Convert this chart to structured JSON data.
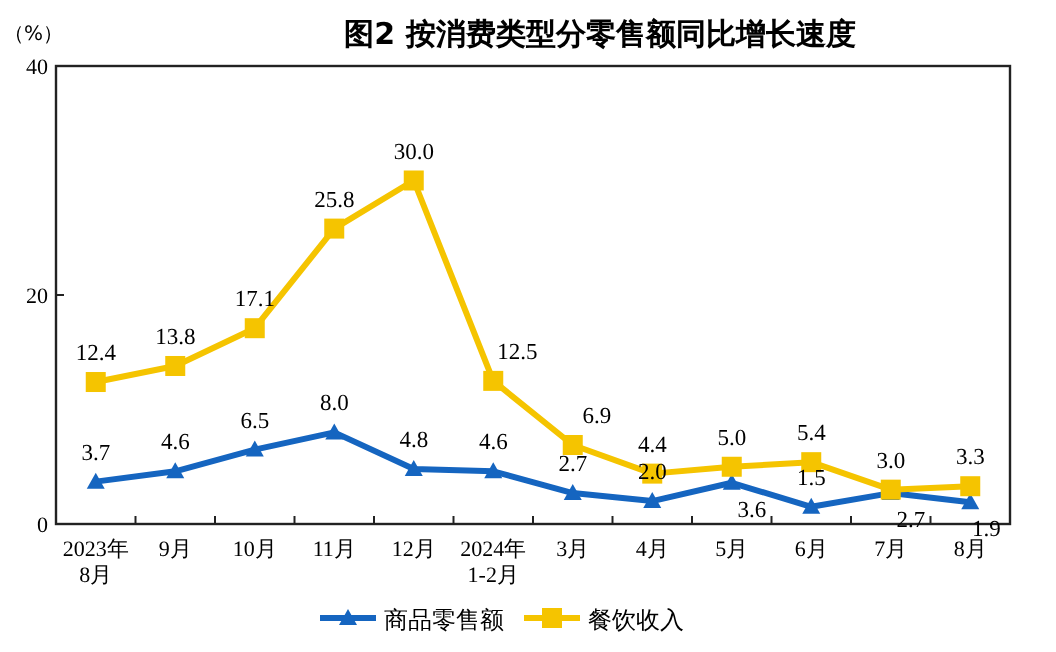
{
  "chart_data": {
    "type": "line",
    "title": "图2  按消费类型分零售额同比增长速度",
    "ylabel": "（%）",
    "categories": [
      "2023年\n8月",
      "9月",
      "10月",
      "11月",
      "12月",
      "2024年\n1-2月",
      "3月",
      "4月",
      "5月",
      "6月",
      "7月",
      "8月"
    ],
    "series": [
      {
        "name": "商品零售额",
        "color": "#1565c0",
        "marker": "triangle",
        "values": [
          3.7,
          4.6,
          6.5,
          8.0,
          4.8,
          4.6,
          2.7,
          2.0,
          3.6,
          1.5,
          2.7,
          1.9
        ],
        "value_labels": [
          "3.7",
          "4.6",
          "6.5",
          "8.0",
          "4.8",
          "4.6",
          "2.7",
          "2.0",
          "3.6",
          "1.5",
          "2.7",
          "1.9"
        ]
      },
      {
        "name": "餐饮收入",
        "color": "#f5c400",
        "marker": "square",
        "values": [
          12.4,
          13.8,
          17.1,
          25.8,
          30.0,
          12.5,
          6.9,
          4.4,
          5.0,
          5.4,
          3.0,
          3.3
        ],
        "value_labels": [
          "12.4",
          "13.8",
          "17.1",
          "25.8",
          "30.0",
          "12.5",
          "6.9",
          "4.4",
          "5.0",
          "5.4",
          "3.0",
          "3.3"
        ]
      }
    ],
    "ylim": [
      0,
      40
    ],
    "yticks": [
      0,
      20,
      40
    ],
    "grid": false,
    "legend": "bottom"
  }
}
